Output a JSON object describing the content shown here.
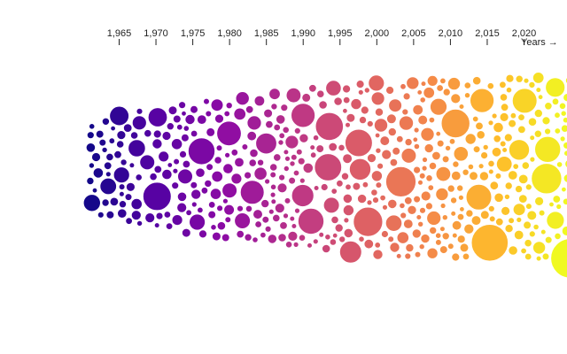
{
  "chart_data": {
    "type": "scatter",
    "subtype": "beeswarm",
    "xlabel": "Years →",
    "xlim": [
      1960,
      2025
    ],
    "xticks": [
      {
        "value": 1965,
        "label": "1,965"
      },
      {
        "value": 1970,
        "label": "1,970"
      },
      {
        "value": 1975,
        "label": "1,975"
      },
      {
        "value": 1980,
        "label": "1,980"
      },
      {
        "value": 1985,
        "label": "1,985"
      },
      {
        "value": 1990,
        "label": "1,990"
      },
      {
        "value": 1995,
        "label": "1,995"
      },
      {
        "value": 2000,
        "label": "2,000"
      },
      {
        "value": 2005,
        "label": "2,005"
      },
      {
        "value": 2010,
        "label": "2,010"
      },
      {
        "value": 2015,
        "label": "2,015"
      },
      {
        "value": 2020,
        "label": "2,020"
      }
    ],
    "axis_position": "top",
    "color_scale": "plasma",
    "grid": false,
    "legend": "none"
  }
}
